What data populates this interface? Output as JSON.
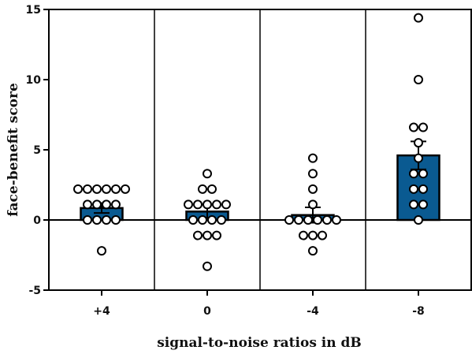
{
  "chart_data": {
    "type": "bar",
    "title": "",
    "xlabel": "signal-to-noise ratios in dB",
    "ylabel": "face-benefit score",
    "ylim": [
      -5,
      15
    ],
    "yticks": [
      -5,
      0,
      5,
      10,
      15
    ],
    "ytick_labels": [
      "-5",
      "0",
      "5",
      "10",
      "15"
    ],
    "categories": [
      "+4",
      "0",
      "-4",
      "-8"
    ],
    "values": [
      0.85,
      0.6,
      0.35,
      4.6
    ],
    "error_bars": [
      {
        "low": 0.5,
        "high": 1.2
      },
      {
        "low": 0.1,
        "high": 1.1
      },
      {
        "low": -0.2,
        "high": 0.9
      },
      {
        "low": 3.6,
        "high": 5.6
      }
    ],
    "points": [
      [
        2.2,
        2.2,
        2.2,
        2.2,
        2.2,
        2.2,
        1.1,
        1.1,
        1.1,
        1.1,
        0,
        0,
        0,
        0,
        -2.2
      ],
      [
        3.3,
        2.2,
        2.2,
        1.1,
        1.1,
        1.1,
        1.1,
        1.1,
        0,
        0,
        0,
        0,
        -1.1,
        -1.1,
        -1.1,
        -3.3
      ],
      [
        4.4,
        3.3,
        2.2,
        1.1,
        0,
        0,
        0,
        0,
        0,
        0,
        -1.1,
        -1.1,
        -1.1,
        -2.2
      ],
      [
        14.4,
        10,
        6.6,
        6.6,
        5.5,
        4.4,
        3.3,
        3.3,
        2.2,
        2.2,
        1.1,
        1.1,
        0
      ]
    ],
    "bar_color": "#0a5a91",
    "grid": false,
    "category_dividers": true
  }
}
